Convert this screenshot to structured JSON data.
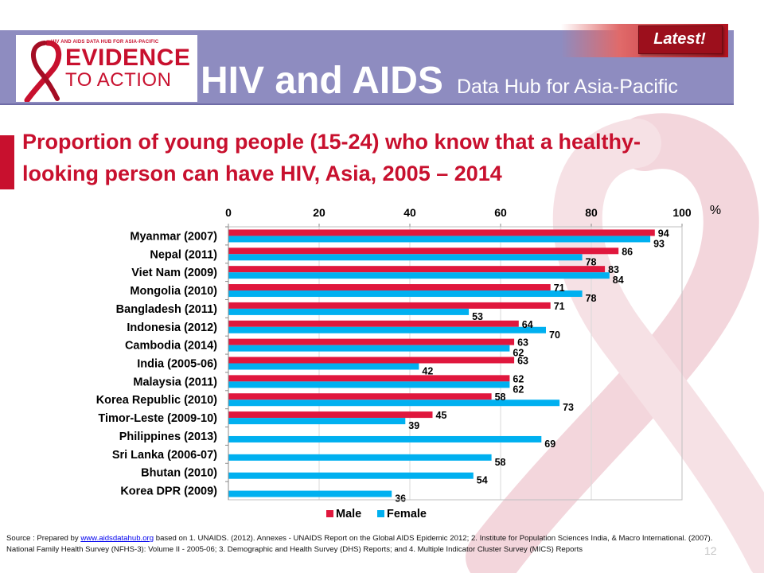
{
  "header": {
    "logo_small_text": "HIV AND AIDS DATA HUB FOR ASIA-PACIFIC",
    "logo_line1": "EVIDENCE",
    "logo_line2": "TO ACTION",
    "title": "HIV and AIDS",
    "subtitle": "Data Hub for Asia-Pacific",
    "badge": "Latest!"
  },
  "colors": {
    "male": "#e0173d",
    "female": "#00b0f0",
    "brand_red": "#c8102e",
    "header_band": "#8e8cc0"
  },
  "chart_data": {
    "type": "bar",
    "orientation": "horizontal",
    "title": "Proportion of young people (15-24) who know that a healthy-looking person can have HIV, Asia, 2005 – 2014",
    "unit_label": "%",
    "xlim": [
      0,
      100
    ],
    "x_ticks": [
      "0",
      "20",
      "40",
      "60",
      "80",
      "100"
    ],
    "x_tick_values": [
      0,
      20,
      40,
      60,
      80,
      100
    ],
    "grid": true,
    "legend_position": "bottom",
    "categories": [
      "Myanmar (2007)",
      "Nepal (2011)",
      "Viet Nam (2009)",
      "Mongolia (2010)",
      "Bangladesh (2011)",
      "Indonesia (2012)",
      "Cambodia (2014)",
      "India (2005-06)",
      "Malaysia (2011)",
      "Korea Republic (2010)",
      "Timor-Leste (2009-10)",
      "Philippines (2013)",
      "Sri Lanka (2006-07)",
      "Bhutan (2010)",
      "Korea DPR (2009)"
    ],
    "series": [
      {
        "name": "Male",
        "values": [
          94,
          86,
          83,
          71,
          71,
          64,
          63,
          63,
          62,
          58,
          45,
          null,
          null,
          null,
          null
        ]
      },
      {
        "name": "Female",
        "values": [
          93,
          78,
          84,
          78,
          53,
          70,
          62,
          42,
          62,
          73,
          39,
          69,
          58,
          54,
          36
        ]
      }
    ]
  },
  "source": {
    "prefix": "Source : Prepared by ",
    "link": "www.aidsdatahub.org",
    "text": " based on 1. UNAIDS. (2012). Annexes - UNAIDS Report on the Global AIDS Epidemic 2012; 2. Institute for Population Sciences India, & Macro International. (2007). National Family Health Survey (NFHS-3): Volume II - 2005-06;  3. Demographic and Health Survey (DHS) Reports; and 4. Multiple Indicator Cluster Survey (MICS) Reports"
  },
  "page_number": "12"
}
